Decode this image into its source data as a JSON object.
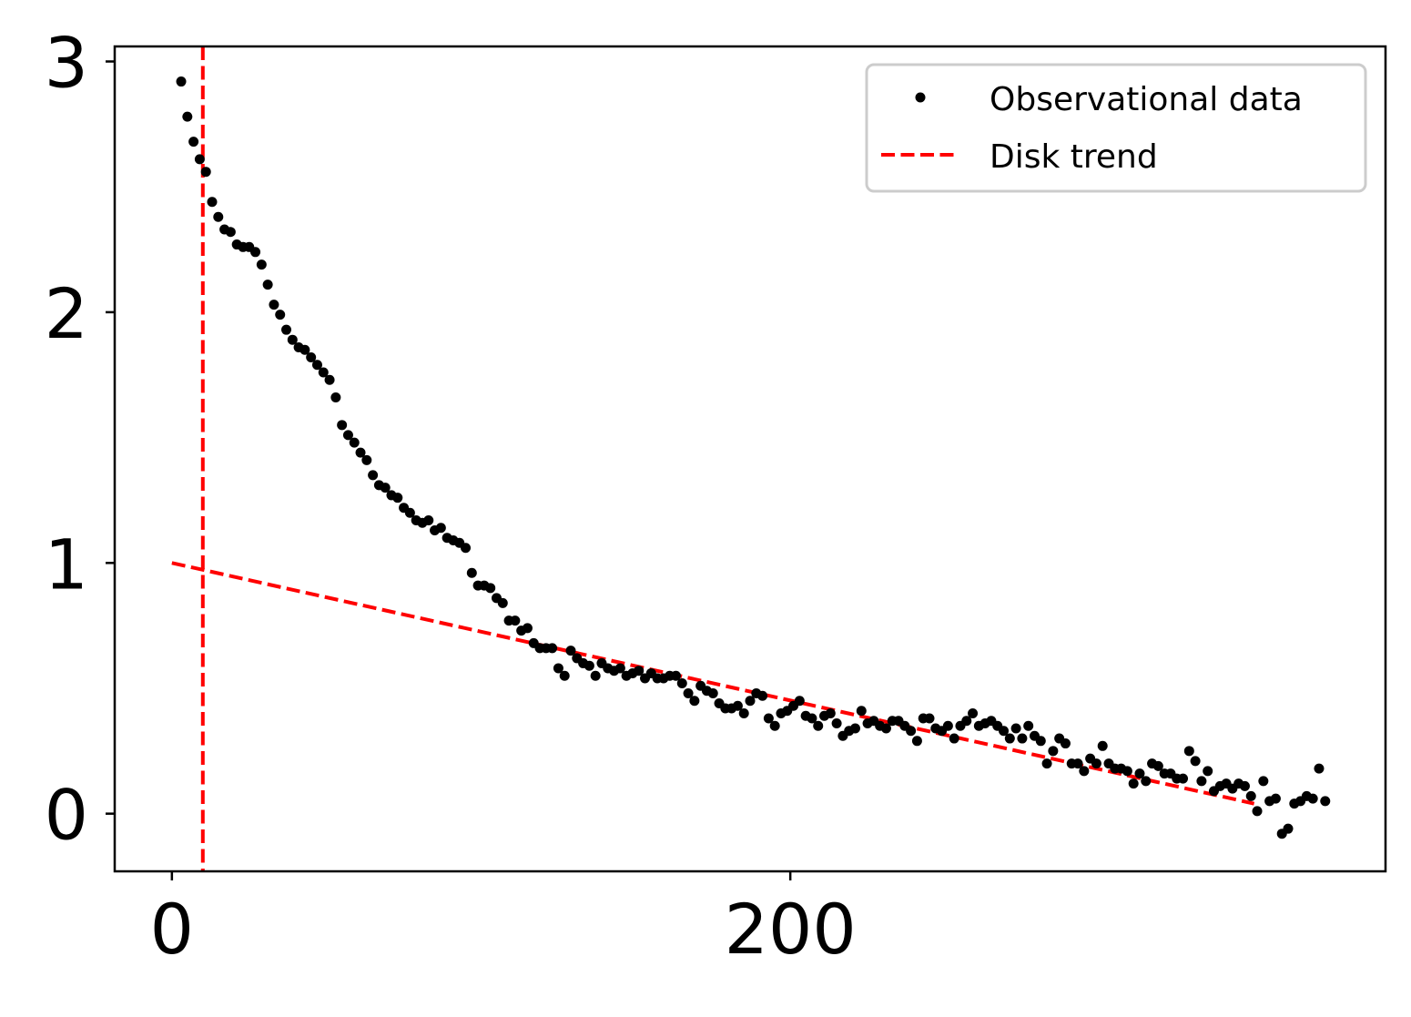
{
  "chart_data": {
    "type": "scatter",
    "title": "",
    "xlabel": "",
    "ylabel": "",
    "xlim": [
      -18.5,
      392.5
    ],
    "ylim": [
      -0.23,
      3.06
    ],
    "x_ticks": [
      0,
      200
    ],
    "x_tick_labels": [
      "0",
      "200"
    ],
    "y_ticks": [
      0,
      1,
      2,
      3
    ],
    "y_tick_labels": [
      "0",
      "1",
      "2",
      "3"
    ],
    "grid": false,
    "legend": {
      "placement": "top-right",
      "entries": [
        "Observational data",
        "Disk trend"
      ]
    },
    "series": [
      {
        "name": "Observational data",
        "kind": "points",
        "color": "#000000",
        "points": [
          [
            3,
            2.92
          ],
          [
            5,
            2.78
          ],
          [
            7,
            2.68
          ],
          [
            9,
            2.61
          ],
          [
            11,
            2.56
          ],
          [
            13,
            2.44
          ],
          [
            15,
            2.38
          ],
          [
            17,
            2.33
          ],
          [
            19,
            2.32
          ],
          [
            21,
            2.27
          ],
          [
            23,
            2.26
          ],
          [
            25,
            2.26
          ],
          [
            27,
            2.24
          ],
          [
            29,
            2.19
          ],
          [
            31,
            2.11
          ],
          [
            33,
            2.03
          ],
          [
            35,
            1.99
          ],
          [
            37,
            1.93
          ],
          [
            39,
            1.89
          ],
          [
            41,
            1.86
          ],
          [
            43,
            1.85
          ],
          [
            45,
            1.82
          ],
          [
            47,
            1.79
          ],
          [
            49,
            1.76
          ],
          [
            51,
            1.73
          ],
          [
            53,
            1.66
          ],
          [
            55,
            1.55
          ],
          [
            57,
            1.51
          ],
          [
            59,
            1.48
          ],
          [
            61,
            1.44
          ],
          [
            63,
            1.41
          ],
          [
            65,
            1.35
          ],
          [
            67,
            1.31
          ],
          [
            69,
            1.3
          ],
          [
            71,
            1.27
          ],
          [
            73,
            1.26
          ],
          [
            75,
            1.22
          ],
          [
            77,
            1.2
          ],
          [
            79,
            1.17
          ],
          [
            81,
            1.16
          ],
          [
            83,
            1.17
          ],
          [
            85,
            1.13
          ],
          [
            87,
            1.14
          ],
          [
            89,
            1.1
          ],
          [
            91,
            1.09
          ],
          [
            93,
            1.08
          ],
          [
            95,
            1.06
          ],
          [
            97,
            0.96
          ],
          [
            99,
            0.91
          ],
          [
            101,
            0.91
          ],
          [
            103,
            0.9
          ],
          [
            105,
            0.86
          ],
          [
            107,
            0.84
          ],
          [
            109,
            0.77
          ],
          [
            111,
            0.77
          ],
          [
            113,
            0.73
          ],
          [
            115,
            0.74
          ],
          [
            117,
            0.68
          ],
          [
            119,
            0.66
          ],
          [
            121,
            0.66
          ],
          [
            123,
            0.66
          ],
          [
            125,
            0.58
          ],
          [
            127,
            0.55
          ],
          [
            129,
            0.65
          ],
          [
            131,
            0.62
          ],
          [
            133,
            0.6
          ],
          [
            135,
            0.59
          ],
          [
            137,
            0.55
          ],
          [
            139,
            0.6
          ],
          [
            141,
            0.58
          ],
          [
            143,
            0.57
          ],
          [
            145,
            0.58
          ],
          [
            147,
            0.55
          ],
          [
            149,
            0.56
          ],
          [
            151,
            0.57
          ],
          [
            153,
            0.54
          ],
          [
            155,
            0.56
          ],
          [
            157,
            0.54
          ],
          [
            159,
            0.54
          ],
          [
            161,
            0.55
          ],
          [
            163,
            0.55
          ],
          [
            165,
            0.52
          ],
          [
            167,
            0.48
          ],
          [
            169,
            0.45
          ],
          [
            171,
            0.51
          ],
          [
            173,
            0.49
          ],
          [
            175,
            0.48
          ],
          [
            177,
            0.44
          ],
          [
            179,
            0.42
          ],
          [
            181,
            0.42
          ],
          [
            183,
            0.43
          ],
          [
            185,
            0.4
          ],
          [
            187,
            0.45
          ],
          [
            189,
            0.48
          ],
          [
            191,
            0.47
          ],
          [
            193,
            0.38
          ],
          [
            195,
            0.35
          ],
          [
            197,
            0.4
          ],
          [
            199,
            0.41
          ],
          [
            201,
            0.43
          ],
          [
            203,
            0.45
          ],
          [
            205,
            0.39
          ],
          [
            207,
            0.38
          ],
          [
            209,
            0.35
          ],
          [
            211,
            0.39
          ],
          [
            213,
            0.4
          ],
          [
            215,
            0.36
          ],
          [
            217,
            0.31
          ],
          [
            219,
            0.33
          ],
          [
            221,
            0.34
          ],
          [
            223,
            0.41
          ],
          [
            225,
            0.36
          ],
          [
            227,
            0.37
          ],
          [
            229,
            0.35
          ],
          [
            231,
            0.34
          ],
          [
            233,
            0.37
          ],
          [
            235,
            0.37
          ],
          [
            237,
            0.35
          ],
          [
            239,
            0.33
          ],
          [
            241,
            0.29
          ],
          [
            243,
            0.38
          ],
          [
            245,
            0.38
          ],
          [
            247,
            0.34
          ],
          [
            249,
            0.33
          ],
          [
            251,
            0.35
          ],
          [
            253,
            0.3
          ],
          [
            255,
            0.35
          ],
          [
            257,
            0.37
          ],
          [
            259,
            0.4
          ],
          [
            261,
            0.35
          ],
          [
            263,
            0.36
          ],
          [
            265,
            0.37
          ],
          [
            267,
            0.35
          ],
          [
            269,
            0.33
          ],
          [
            271,
            0.3
          ],
          [
            273,
            0.34
          ],
          [
            275,
            0.3
          ],
          [
            277,
            0.35
          ],
          [
            279,
            0.31
          ],
          [
            281,
            0.29
          ],
          [
            283,
            0.2
          ],
          [
            285,
            0.25
          ],
          [
            287,
            0.3
          ],
          [
            289,
            0.28
          ],
          [
            291,
            0.2
          ],
          [
            293,
            0.2
          ],
          [
            295,
            0.17
          ],
          [
            297,
            0.22
          ],
          [
            299,
            0.2
          ],
          [
            301,
            0.27
          ],
          [
            303,
            0.2
          ],
          [
            305,
            0.18
          ],
          [
            307,
            0.18
          ],
          [
            309,
            0.17
          ],
          [
            311,
            0.12
          ],
          [
            313,
            0.16
          ],
          [
            315,
            0.13
          ],
          [
            317,
            0.2
          ],
          [
            319,
            0.19
          ],
          [
            321,
            0.16
          ],
          [
            323,
            0.16
          ],
          [
            325,
            0.14
          ],
          [
            327,
            0.14
          ],
          [
            329,
            0.25
          ],
          [
            331,
            0.21
          ],
          [
            333,
            0.13
          ],
          [
            335,
            0.17
          ],
          [
            337,
            0.09
          ],
          [
            339,
            0.11
          ],
          [
            341,
            0.12
          ],
          [
            343,
            0.1
          ],
          [
            345,
            0.12
          ],
          [
            347,
            0.11
          ],
          [
            349,
            0.07
          ],
          [
            351,
            0.01
          ],
          [
            353,
            0.13
          ],
          [
            355,
            0.05
          ],
          [
            357,
            0.06
          ],
          [
            359,
            -0.08
          ],
          [
            361,
            -0.06
          ],
          [
            363,
            0.04
          ],
          [
            365,
            0.05
          ],
          [
            367,
            0.07
          ],
          [
            369,
            0.06
          ],
          [
            371,
            0.18
          ],
          [
            373,
            0.05
          ]
        ]
      },
      {
        "name": "Disk trend",
        "kind": "dashed-line",
        "color": "#ff0000",
        "segments": [
          [
            [
              0,
              1.0
            ],
            [
              350,
              0.04
            ]
          ],
          [
            [
              10,
              3.06
            ],
            [
              10,
              -0.23
            ]
          ]
        ]
      }
    ]
  }
}
